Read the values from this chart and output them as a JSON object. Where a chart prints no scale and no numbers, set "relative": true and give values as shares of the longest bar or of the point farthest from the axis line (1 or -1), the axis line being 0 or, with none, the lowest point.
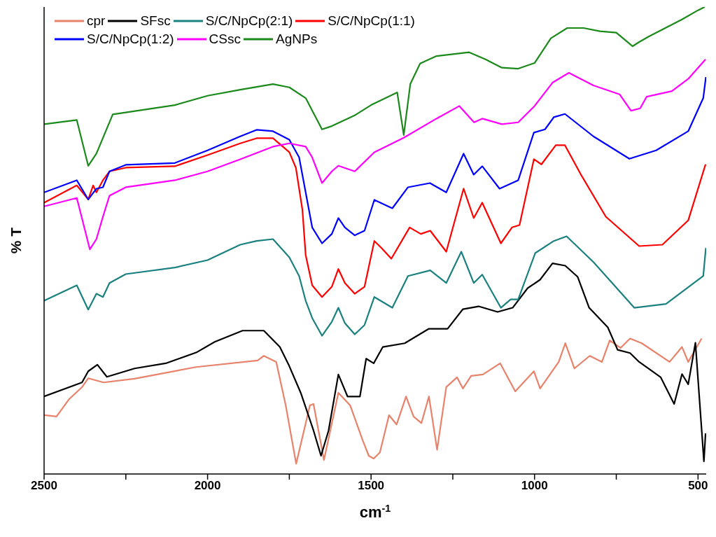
{
  "chart_data": {
    "type": "line",
    "relative": true,
    "xlabel": "cm$^{-1}$",
    "ylabel": "% T",
    "xlim": [
      2500,
      475
    ],
    "xticks": [
      2500,
      {
        "value": 2250,
        "label": null
      },
      2000,
      {
        "value": 1750,
        "label": null
      },
      1500,
      {
        "value": 1250,
        "label": null
      },
      1000,
      {
        "value": 750,
        "label": null
      },
      500
    ],
    "legend": "top left",
    "grid": false,
    "marker": "none",
    "line_style": "solid",
    "series": [
      {
        "name": "cpr",
        "color": "#e8826a",
        "x": [
          2500,
          2462,
          2424,
          2384,
          2365,
          2318,
          2223,
          2035,
          1847,
          1828,
          1790,
          1761,
          1729,
          1687,
          1676,
          1644,
          1600,
          1564,
          1526,
          1507,
          1492,
          1473,
          1445,
          1422,
          1393,
          1370,
          1346,
          1323,
          1298,
          1270,
          1237,
          1219,
          1194,
          1158,
          1105,
          1059,
          1002,
          983,
          926,
          906,
          878,
          831,
          794,
          770,
          737,
          708,
          672,
          587,
          549,
          530,
          489
        ],
        "values": [
          0.126,
          0.123,
          0.16,
          0.186,
          0.205,
          0.196,
          0.204,
          0.229,
          0.243,
          0.253,
          0.24,
          0.147,
          0.022,
          0.147,
          0.15,
          0.03,
          0.174,
          0.147,
          0.073,
          0.039,
          0.033,
          0.046,
          0.126,
          0.106,
          0.166,
          0.123,
          0.109,
          0.166,
          0.052,
          0.186,
          0.207,
          0.183,
          0.21,
          0.213,
          0.237,
          0.177,
          0.22,
          0.183,
          0.24,
          0.28,
          0.226,
          0.253,
          0.24,
          0.286,
          0.27,
          0.29,
          0.28,
          0.24,
          0.272,
          0.24,
          0.29
        ]
      },
      {
        "name": "SFsc",
        "color": "#000000",
        "x": [
          2500,
          2384,
          2365,
          2337,
          2308,
          2223,
          2128,
          2035,
          1978,
          1893,
          1828,
          1779,
          1752,
          1714,
          1676,
          1653,
          1630,
          1600,
          1572,
          1534,
          1515,
          1492,
          1464,
          1397,
          1323,
          1266,
          1219,
          1171,
          1113,
          1067,
          1021,
          983,
          945,
          906,
          868,
          833,
          776,
          746,
          708,
          680,
          614,
          573,
          549,
          530,
          508,
          482,
          477
        ],
        "values": [
          0.166,
          0.196,
          0.22,
          0.234,
          0.208,
          0.226,
          0.237,
          0.26,
          0.283,
          0.307,
          0.307,
          0.272,
          0.234,
          0.172,
          0.093,
          0.039,
          0.093,
          0.213,
          0.166,
          0.166,
          0.247,
          0.237,
          0.272,
          0.28,
          0.311,
          0.311,
          0.353,
          0.359,
          0.347,
          0.356,
          0.398,
          0.416,
          0.451,
          0.446,
          0.422,
          0.356,
          0.314,
          0.266,
          0.259,
          0.24,
          0.207,
          0.15,
          0.214,
          0.192,
          0.281,
          0.027,
          0.087
        ]
      },
      {
        "name": "S/C/NpCp(2:1)",
        "color": "#1a8080",
        "x": [
          2500,
          2400,
          2365,
          2340,
          2320,
          2300,
          2250,
          2100,
          2000,
          1900,
          1850,
          1800,
          1750,
          1720,
          1700,
          1680,
          1650,
          1620,
          1600,
          1580,
          1550,
          1520,
          1490,
          1435,
          1387,
          1319,
          1270,
          1224,
          1186,
          1160,
          1103,
          1073,
          1050,
          998,
          941,
          902,
          820,
          695,
          598,
          551,
          484,
          476
        ],
        "values": [
          0.371,
          0.404,
          0.352,
          0.386,
          0.379,
          0.409,
          0.428,
          0.442,
          0.458,
          0.491,
          0.499,
          0.503,
          0.464,
          0.424,
          0.371,
          0.334,
          0.296,
          0.326,
          0.356,
          0.323,
          0.299,
          0.319,
          0.379,
          0.356,
          0.424,
          0.436,
          0.409,
          0.476,
          0.409,
          0.427,
          0.356,
          0.374,
          0.374,
          0.473,
          0.499,
          0.509,
          0.454,
          0.356,
          0.364,
          0.389,
          0.424,
          0.484
        ]
      },
      {
        "name": "S/C/NpCp(1:1)",
        "color": "#ff0000",
        "x": [
          2500,
          2400,
          2365,
          2350,
          2340,
          2320,
          2300,
          2250,
          2100,
          2000,
          1900,
          1850,
          1800,
          1750,
          1730,
          1710,
          1700,
          1680,
          1650,
          1620,
          1600,
          1580,
          1550,
          1520,
          1490,
          1468,
          1438,
          1382,
          1348,
          1319,
          1270,
          1217,
          1186,
          1160,
          1103,
          1069,
          1046,
          1002,
          979,
          935,
          907,
          858,
          782,
          680,
          609,
          530,
          477
        ],
        "values": [
          0.581,
          0.618,
          0.588,
          0.618,
          0.603,
          0.629,
          0.648,
          0.656,
          0.659,
          0.683,
          0.708,
          0.719,
          0.719,
          0.689,
          0.656,
          0.566,
          0.469,
          0.404,
          0.379,
          0.401,
          0.439,
          0.409,
          0.386,
          0.401,
          0.499,
          0.484,
          0.461,
          0.528,
          0.514,
          0.521,
          0.476,
          0.611,
          0.548,
          0.581,
          0.494,
          0.528,
          0.533,
          0.674,
          0.663,
          0.704,
          0.704,
          0.641,
          0.551,
          0.488,
          0.491,
          0.543,
          0.663
        ]
      },
      {
        "name": "S/C/NpCp(1:2)",
        "color": "#0000ff",
        "x": [
          2500,
          2400,
          2365,
          2340,
          2320,
          2300,
          2250,
          2100,
          2000,
          1900,
          1850,
          1800,
          1750,
          1720,
          1700,
          1680,
          1650,
          1620,
          1600,
          1580,
          1550,
          1520,
          1490,
          1435,
          1387,
          1320,
          1270,
          1217,
          1186,
          1160,
          1107,
          1050,
          1002,
          968,
          941,
          907,
          820,
          710,
          628,
          530,
          484,
          476
        ],
        "values": [
          0.603,
          0.629,
          0.588,
          0.611,
          0.614,
          0.648,
          0.662,
          0.666,
          0.693,
          0.723,
          0.737,
          0.734,
          0.716,
          0.678,
          0.603,
          0.528,
          0.494,
          0.514,
          0.548,
          0.528,
          0.511,
          0.521,
          0.587,
          0.569,
          0.614,
          0.623,
          0.603,
          0.686,
          0.641,
          0.659,
          0.611,
          0.629,
          0.731,
          0.738,
          0.764,
          0.771,
          0.723,
          0.675,
          0.693,
          0.734,
          0.805,
          0.85
        ]
      },
      {
        "name": "CSsc",
        "color": "#ff00ff",
        "x": [
          2500,
          2400,
          2360,
          2340,
          2320,
          2300,
          2250,
          2100,
          2000,
          1900,
          1800,
          1750,
          1700,
          1680,
          1650,
          1620,
          1600,
          1550,
          1490,
          1400,
          1300,
          1230,
          1185,
          1160,
          1100,
          1050,
          1000,
          945,
          895,
          820,
          740,
          705,
          677,
          657,
          580,
          530,
          477
        ],
        "values": [
          0.573,
          0.591,
          0.481,
          0.503,
          0.551,
          0.596,
          0.614,
          0.629,
          0.648,
          0.674,
          0.701,
          0.708,
          0.701,
          0.678,
          0.623,
          0.648,
          0.66,
          0.648,
          0.689,
          0.72,
          0.761,
          0.788,
          0.753,
          0.761,
          0.749,
          0.753,
          0.788,
          0.838,
          0.859,
          0.832,
          0.813,
          0.778,
          0.783,
          0.808,
          0.82,
          0.846,
          0.888
        ]
      },
      {
        "name": "AgNPs",
        "color": "#1a8a1a",
        "x": [
          2500,
          2400,
          2365,
          2340,
          2290,
          2100,
          2000,
          1900,
          1800,
          1750,
          1700,
          1650,
          1620,
          1550,
          1500,
          1420,
          1400,
          1380,
          1350,
          1300,
          1200,
          1150,
          1100,
          1050,
          1000,
          950,
          900,
          850,
          800,
          750,
          700,
          680,
          650,
          600,
          550,
          500,
          480
        ],
        "values": [
          0.749,
          0.758,
          0.66,
          0.686,
          0.77,
          0.79,
          0.81,
          0.823,
          0.835,
          0.828,
          0.805,
          0.738,
          0.745,
          0.768,
          0.79,
          0.817,
          0.726,
          0.835,
          0.879,
          0.895,
          0.903,
          0.888,
          0.87,
          0.868,
          0.88,
          0.933,
          0.955,
          0.955,
          0.948,
          0.945,
          0.916,
          0.925,
          0.937,
          0.955,
          0.973,
          0.993,
          1.0
        ]
      }
    ]
  }
}
